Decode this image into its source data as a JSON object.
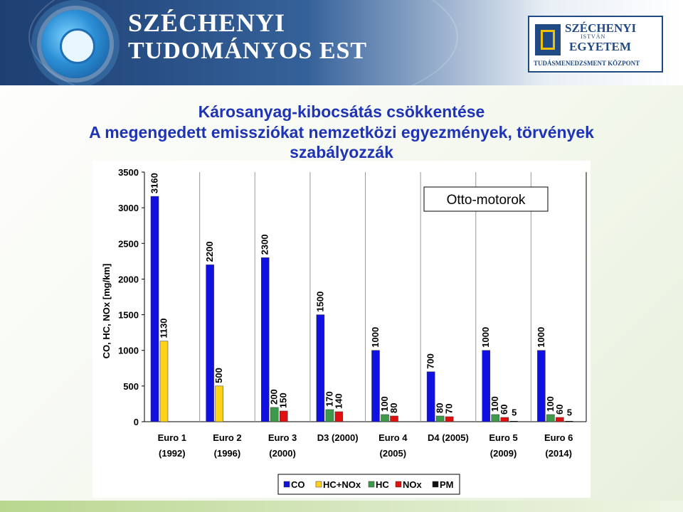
{
  "header": {
    "title_line1": "SZÉCHENYI",
    "title_line2": "TUDOMÁNYOS EST",
    "uni_line1": "SZÉCHENYI",
    "uni_line2": "ISTVÁN",
    "uni_line3": "EGYETEM",
    "uni_line4": "TUDÁSMENEDZSMENT KÖZPONT"
  },
  "slide": {
    "title_line1": "Károsanyag-kibocsátás csökkentése",
    "title_line2": "A megengedett emissziókat nemzetközi egyezmények, törvények",
    "title_line3": "szabályozzák"
  },
  "colors": {
    "CO": "#1010e0",
    "HC+NOx": "#ffd21a",
    "HC": "#3c9a4a",
    "NOx": "#e01010",
    "PM": "#111111"
  },
  "chart_data": {
    "type": "bar",
    "title": "Otto-motorok",
    "ylabel": "CO, HC, NOx [mg/km]",
    "ylim": [
      0,
      3500
    ],
    "yticks": [
      "0",
      "500",
      "1000",
      "1500",
      "2000",
      "2500",
      "3000",
      "3500"
    ],
    "categories": [
      {
        "name": "Euro 1",
        "year": "(1992)"
      },
      {
        "name": "Euro 2",
        "year": "(1996)"
      },
      {
        "name": "Euro 3",
        "year": "(2000)"
      },
      {
        "name": "D3 (2000)",
        "year": ""
      },
      {
        "name": "Euro 4",
        "year": "(2005)"
      },
      {
        "name": "D4 (2005)",
        "year": ""
      },
      {
        "name": "Euro 5",
        "year": "(2009)"
      },
      {
        "name": "Euro 6",
        "year": "(2014)"
      }
    ],
    "series": [
      {
        "name": "CO",
        "values": [
          3160,
          2200,
          2300,
          1500,
          1000,
          700,
          1000,
          1000
        ]
      },
      {
        "name": "HC+NOx",
        "values": [
          1130,
          500,
          null,
          null,
          null,
          null,
          null,
          null
        ]
      },
      {
        "name": "HC",
        "values": [
          null,
          null,
          200,
          170,
          100,
          80,
          100,
          100
        ]
      },
      {
        "name": "NOx",
        "values": [
          null,
          null,
          150,
          140,
          80,
          70,
          60,
          60
        ]
      },
      {
        "name": "PM",
        "values": [
          null,
          null,
          null,
          null,
          null,
          null,
          5,
          5
        ]
      }
    ],
    "grid": "vertical separators",
    "legend": [
      "CO",
      "HC+NOx",
      "HC",
      "NOx",
      "PM"
    ],
    "legend_position": "bottom"
  }
}
